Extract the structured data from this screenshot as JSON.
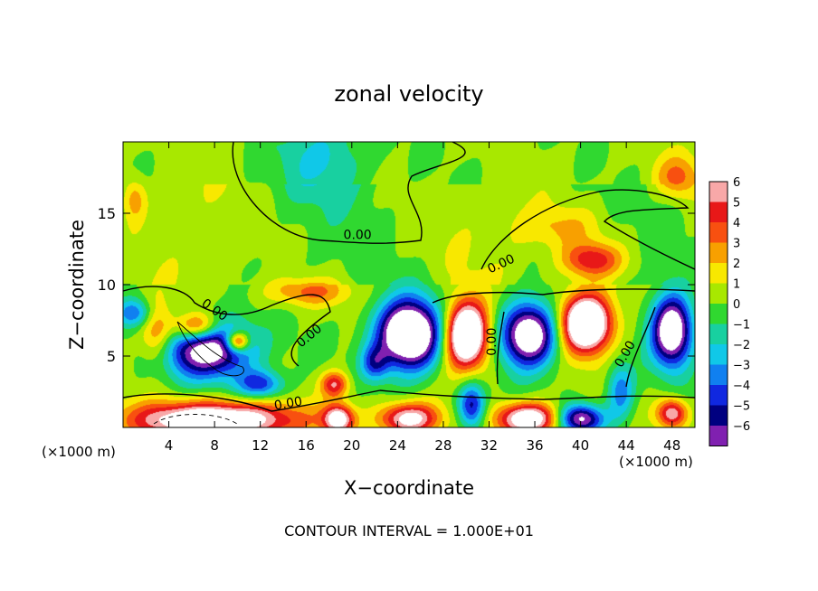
{
  "chart_data": {
    "type": "heatmap",
    "title": "zonal velocity",
    "xlabel": "X−coordinate",
    "ylabel": "Z−coordinate",
    "x_unit_left": "(×1000 m)",
    "x_unit_right": "(×1000 m)",
    "footer": "CONTOUR INTERVAL = 1.000E+01",
    "xlim": [
      0,
      50
    ],
    "ylim": [
      0,
      20
    ],
    "x_ticks": [
      {
        "value": 4,
        "label": "4"
      },
      {
        "value": 8,
        "label": "8"
      },
      {
        "value": 12,
        "label": "12"
      },
      {
        "value": 16,
        "label": "16"
      },
      {
        "value": 20,
        "label": "20"
      },
      {
        "value": 24,
        "label": "24"
      },
      {
        "value": 28,
        "label": "28"
      },
      {
        "value": 32,
        "label": "32"
      },
      {
        "value": 36,
        "label": "36"
      },
      {
        "value": 40,
        "label": "40"
      },
      {
        "value": 44,
        "label": "44"
      },
      {
        "value": 48,
        "label": "48"
      }
    ],
    "y_ticks": [
      {
        "value": 5,
        "label": "5"
      },
      {
        "value": 10,
        "label": "10"
      },
      {
        "value": 15,
        "label": "15"
      }
    ],
    "colorbar": {
      "levels": [
        "6",
        "5",
        "4",
        "3",
        "2",
        "1",
        "0",
        "−1",
        "−2",
        "−3",
        "−4",
        "−5",
        "−6"
      ],
      "colors": [
        "#f8a8a8",
        "#e81818",
        "#f85010",
        "#f8a000",
        "#f8e800",
        "#a8e800",
        "#30d830",
        "#18d0a0",
        "#10c8e8",
        "#1080f0",
        "#1028e0",
        "#000080",
        "#8020b0"
      ]
    },
    "contour_labels": [
      {
        "text": "0.00",
        "x": 20.5,
        "y": 13.2,
        "angle": 0
      },
      {
        "text": "0.00",
        "x": 33.2,
        "y": 11.2,
        "angle": -25
      },
      {
        "text": "0.00",
        "x": 7.8,
        "y": 8.0,
        "angle": 35
      },
      {
        "text": "0.00",
        "x": 16.5,
        "y": 6.2,
        "angle": -40
      },
      {
        "text": "0.00",
        "x": 32.6,
        "y": 6.0,
        "angle": -90
      },
      {
        "text": "0.00",
        "x": 44.2,
        "y": 5.0,
        "angle": -60
      },
      {
        "text": "0.00",
        "x": 14.5,
        "y": 1.4,
        "angle": -10
      }
    ],
    "anomalies": [
      {
        "x": 7.5,
        "z": 5.5,
        "v": -9,
        "rx": 3.8,
        "rz": 2.0
      },
      {
        "x": 6.5,
        "z": 7.0,
        "v": 6,
        "rx": 2.0,
        "rz": 1.0
      },
      {
        "x": 10.0,
        "z": 6.0,
        "v": 7,
        "rx": 1.0,
        "rz": 0.7
      },
      {
        "x": 12.0,
        "z": 3.0,
        "v": -5,
        "rx": 2.0,
        "rz": 1.0
      },
      {
        "x": 3.0,
        "z": 6.5,
        "v": 4,
        "rx": 1.5,
        "rz": 2.0
      },
      {
        "x": 8.0,
        "z": 0.5,
        "v": 9,
        "rx": 7.0,
        "rz": 1.3
      },
      {
        "x": 18.5,
        "z": 3.0,
        "v": 5,
        "rx": 1.2,
        "rz": 0.9
      },
      {
        "x": 18.8,
        "z": 0.6,
        "v": 7,
        "rx": 1.3,
        "rz": 1.0
      },
      {
        "x": 22.0,
        "z": 4.5,
        "v": -4,
        "rx": 1.2,
        "rz": 1.2
      },
      {
        "x": 25.0,
        "z": 6.5,
        "v": -12,
        "rx": 2.8,
        "rz": 2.4
      },
      {
        "x": 30.0,
        "z": 6.5,
        "v": 11,
        "rx": 1.9,
        "rz": 2.3
      },
      {
        "x": 25.0,
        "z": 0.6,
        "v": 7,
        "rx": 2.6,
        "rz": 1.1
      },
      {
        "x": 30.5,
        "z": 1.5,
        "v": -6,
        "rx": 1.2,
        "rz": 1.6
      },
      {
        "x": 35.5,
        "z": 6.5,
        "v": -10,
        "rx": 2.4,
        "rz": 2.2
      },
      {
        "x": 35.5,
        "z": 0.6,
        "v": 8,
        "rx": 2.8,
        "rz": 1.1
      },
      {
        "x": 40.5,
        "z": 7.3,
        "v": 11,
        "rx": 2.2,
        "rz": 2.0
      },
      {
        "x": 41.0,
        "z": 11.7,
        "v": 5,
        "rx": 2.5,
        "rz": 1.2
      },
      {
        "x": 40.0,
        "z": 0.6,
        "v": -8,
        "rx": 2.0,
        "rz": 1.0
      },
      {
        "x": 43.5,
        "z": 2.5,
        "v": -4,
        "rx": 1.2,
        "rz": 2.0
      },
      {
        "x": 48.0,
        "z": 6.8,
        "v": -10,
        "rx": 1.8,
        "rz": 2.5
      },
      {
        "x": 48.0,
        "z": 1.0,
        "v": 6,
        "rx": 1.3,
        "rz": 1.0
      },
      {
        "x": 16.0,
        "z": 9.5,
        "v": 3,
        "rx": 3.5,
        "rz": 1.0
      },
      {
        "x": 17.5,
        "z": 19.0,
        "v": -2.5,
        "rx": 4.0,
        "rz": 3.0
      },
      {
        "x": 48.5,
        "z": 17.5,
        "v": 3,
        "rx": 2.0,
        "rz": 1.5
      },
      {
        "x": 1.0,
        "z": 16.0,
        "v": 2.5,
        "rx": 1.0,
        "rz": 1.5
      },
      {
        "x": 1.0,
        "z": 8.0,
        "v": -4,
        "rx": 1.5,
        "rz": 1.0
      },
      {
        "x": 38.0,
        "z": 14.0,
        "v": 2,
        "rx": 4.0,
        "rz": 1.5
      }
    ]
  }
}
